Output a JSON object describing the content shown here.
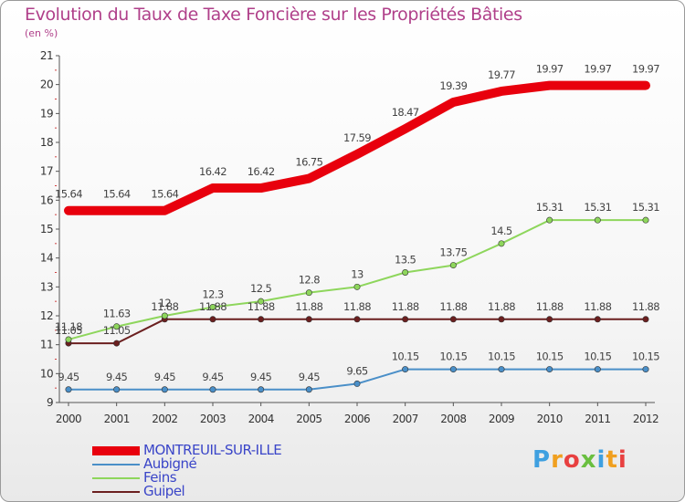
{
  "header": {
    "title": "Evolution du Taux de Taxe Foncière sur les Propriétés Bâties",
    "subtitle": "(en %)"
  },
  "chart_data": {
    "type": "line",
    "title": "Evolution du Taux de Taxe Foncière sur les Propriétés Bâties",
    "subtitle": "(en %)",
    "x": [
      "2000",
      "2001",
      "2002",
      "2003",
      "2004",
      "2005",
      "2006",
      "2007",
      "2008",
      "2009",
      "2010",
      "2011",
      "2012"
    ],
    "ylim": [
      9,
      21
    ],
    "yticks": [
      9,
      10,
      11,
      12,
      13,
      14,
      15,
      16,
      17,
      18,
      19,
      20,
      21
    ],
    "grid": false,
    "series": [
      {
        "name": "MONTREUIL-SUR-ILLE",
        "color": "#e8000d",
        "values": [
          15.64,
          15.64,
          15.64,
          16.42,
          16.42,
          16.75,
          17.59,
          18.47,
          19.39,
          19.77,
          19.97,
          19.97,
          19.97
        ],
        "labels": [
          "15.64",
          "15.64",
          "15.64",
          "16.42",
          "16.42",
          "16.75",
          "17.59",
          "18.47",
          "19.39",
          "19.77",
          "19.97",
          "19.97",
          "19.97"
        ]
      },
      {
        "name": "Aubigné",
        "color": "#4a8fc8",
        "values": [
          9.45,
          9.45,
          9.45,
          9.45,
          9.45,
          9.45,
          9.65,
          10.15,
          10.15,
          10.15,
          10.15,
          10.15,
          10.15
        ],
        "labels": [
          "9.45",
          "9.45",
          "9.45",
          "9.45",
          "9.45",
          "9.45",
          "9.65",
          "10.15",
          "10.15",
          "10.15",
          "10.15",
          "10.15",
          "10.15"
        ]
      },
      {
        "name": "Feins",
        "color": "#8ed65c",
        "values": [
          11.18,
          11.63,
          12,
          12.3,
          12.5,
          12.8,
          13,
          13.5,
          13.75,
          14.5,
          15.31,
          15.31,
          15.31
        ],
        "labels": [
          "11.18",
          "11.63",
          "12",
          "12.3",
          "12.5",
          "12.8",
          "13",
          "13.5",
          "13.75",
          "14.5",
          "15.31",
          "15.31",
          "15.31"
        ]
      },
      {
        "name": "Guipel",
        "color": "#6b1f1f",
        "values": [
          11.05,
          11.05,
          11.88,
          11.88,
          11.88,
          11.88,
          11.88,
          11.88,
          11.88,
          11.88,
          11.88,
          11.88,
          11.88
        ],
        "labels": [
          "11.05",
          "11.05",
          "11.88",
          "11.88",
          "11.88",
          "11.88",
          "11.88",
          "11.88",
          "11.88",
          "11.88",
          "11.88",
          "11.88",
          "11.88"
        ]
      }
    ],
    "legend": [
      "MONTREUIL-SUR-ILLE",
      "Aubigné",
      "Feins",
      "Guipel"
    ],
    "legend_placement": "bottom-left"
  },
  "logo": {
    "letters": [
      "P",
      "r",
      "o",
      "x",
      "i",
      "t",
      "i"
    ],
    "colors": [
      "#3fa0e0",
      "#f0a020",
      "#e84040",
      "#6abf40",
      "#3fa0e0",
      "#f0a020",
      "#e84040"
    ]
  }
}
